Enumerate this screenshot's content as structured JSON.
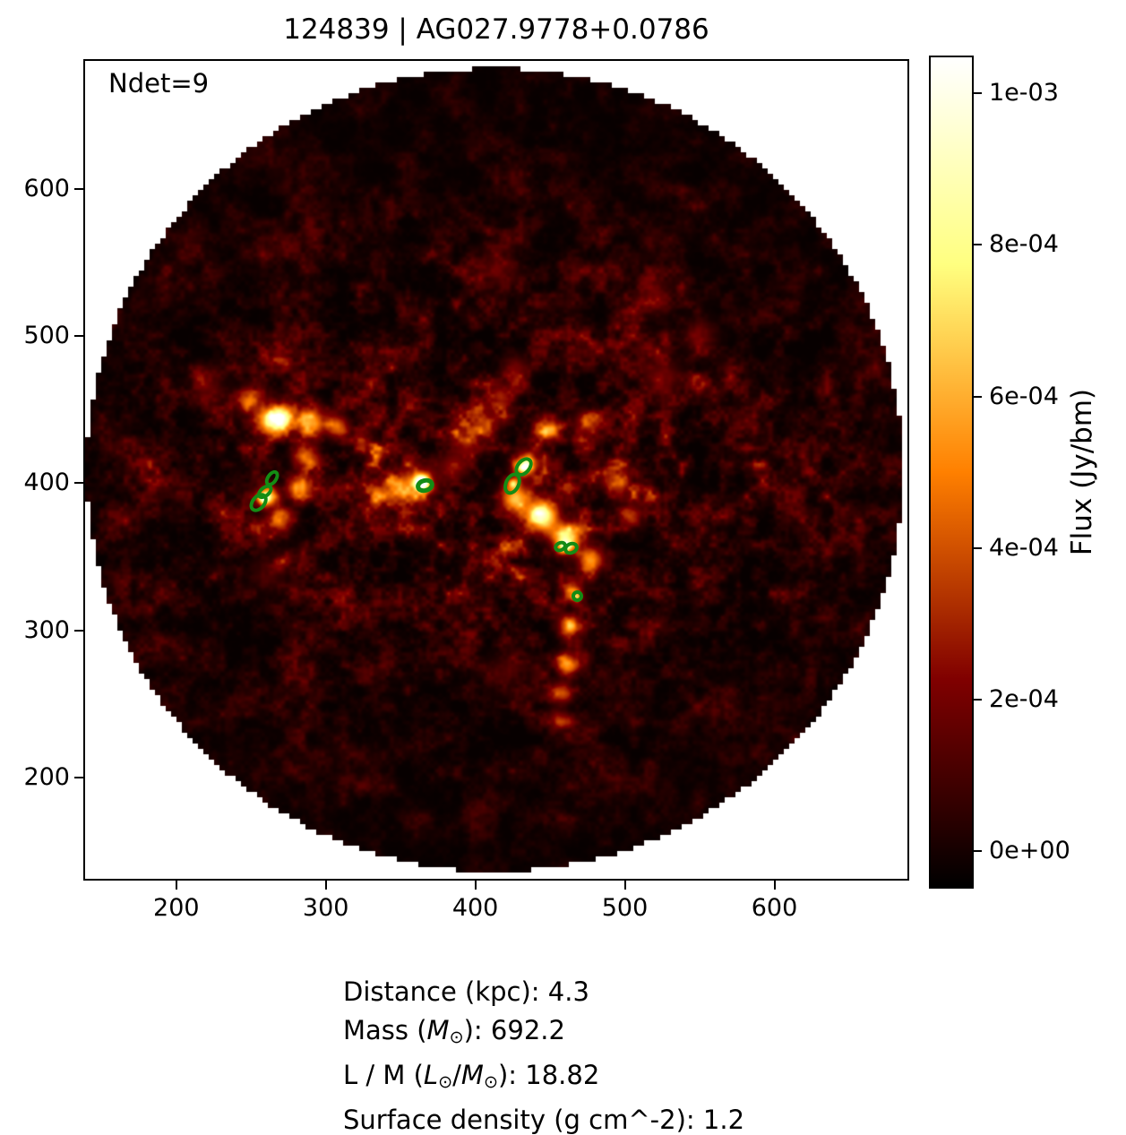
{
  "title": "124839 | AG027.9778+0.0786",
  "ndet_label": "Ndet=9",
  "colors": {
    "detection_ellipse": "#148c14",
    "frame": "#000000",
    "background": "#ffffff"
  },
  "chart_data": {
    "type": "heatmap",
    "title": "124839 | AG027.9778+0.0786",
    "annotation": "Ndet=9",
    "xlabel": "",
    "ylabel": "",
    "xlim": [
      139,
      689
    ],
    "ylim": [
      131,
      687
    ],
    "xticks": [
      200,
      300,
      400,
      500,
      600
    ],
    "yticks": [
      200,
      300,
      400,
      500,
      600
    ],
    "grid": false,
    "colorbar": {
      "label": "Flux (Jy/bm)",
      "colormap": "afmhot",
      "vmin": -5e-05,
      "vmax": 0.00105,
      "ticks": [
        {
          "value": 0.001,
          "label": "1e-03"
        },
        {
          "value": 0.0008,
          "label": "8e-04"
        },
        {
          "value": 0.0006,
          "label": "6e-04"
        },
        {
          "value": 0.0004,
          "label": "4e-04"
        },
        {
          "value": 0.0002,
          "label": "2e-04"
        },
        {
          "value": 0.0,
          "label": "0e+00"
        }
      ]
    },
    "field": {
      "shape": "circle",
      "cx": 413,
      "cy": 409,
      "radius": 273
    },
    "detections": [
      {
        "x": 264,
        "y": 403,
        "a": 4.0,
        "b": 6.2,
        "angle": 35,
        "stroke": 4
      },
      {
        "x": 259,
        "y": 394,
        "a": 4.0,
        "b": 6.2,
        "angle": 50,
        "stroke": 4
      },
      {
        "x": 255,
        "y": 387,
        "a": 5.2,
        "b": 7.4,
        "angle": 40,
        "stroke": 4
      },
      {
        "x": 366,
        "y": 398,
        "a": 6.2,
        "b": 5.0,
        "angle": -15,
        "stroke": 5
      },
      {
        "x": 432,
        "y": 411,
        "a": 5.0,
        "b": 7.4,
        "angle": 40,
        "stroke": 4
      },
      {
        "x": 425,
        "y": 400,
        "a": 5.4,
        "b": 7.8,
        "angle": 25,
        "stroke": 4
      },
      {
        "x": 457,
        "y": 357,
        "a": 4.6,
        "b": 3.6,
        "angle": -25,
        "stroke": 4
      },
      {
        "x": 464,
        "y": 356,
        "a": 5.2,
        "b": 4.2,
        "angle": -25,
        "stroke": 4
      },
      {
        "x": 468,
        "y": 323,
        "a": 3.9,
        "b": 3.9,
        "angle": 0,
        "stroke": 4
      }
    ],
    "bright_features": [
      {
        "x": 262,
        "y": 442,
        "sigma": 6.0,
        "amp": 0.00055
      },
      {
        "x": 271,
        "y": 445,
        "sigma": 6.0,
        "amp": 0.0006
      },
      {
        "x": 289,
        "y": 442,
        "sigma": 6.0,
        "amp": 0.00055
      },
      {
        "x": 307,
        "y": 439,
        "sigma": 5.5,
        "amp": 0.00045
      },
      {
        "x": 286,
        "y": 418,
        "sigma": 5.5,
        "amp": 0.00045
      },
      {
        "x": 283,
        "y": 397,
        "sigma": 5.5,
        "amp": 0.0005
      },
      {
        "x": 261,
        "y": 391,
        "sigma": 5.0,
        "amp": 0.0007
      },
      {
        "x": 258,
        "y": 390,
        "sigma": 2.5,
        "amp": 0.0005
      },
      {
        "x": 270,
        "y": 375,
        "sigma": 5.5,
        "amp": 0.00035
      },
      {
        "x": 249,
        "y": 455,
        "sigma": 7.0,
        "amp": 0.00025
      },
      {
        "x": 334,
        "y": 392,
        "sigma": 6.0,
        "amp": 0.00025
      },
      {
        "x": 349,
        "y": 395,
        "sigma": 5.5,
        "amp": 0.00035
      },
      {
        "x": 364,
        "y": 401,
        "sigma": 3.6,
        "amp": 0.00105
      },
      {
        "x": 362,
        "y": 400,
        "sigma": 9.0,
        "amp": 0.00035
      },
      {
        "x": 385,
        "y": 412,
        "sigma": 7.0,
        "amp": 0.00025
      },
      {
        "x": 406,
        "y": 442,
        "sigma": 7.0,
        "amp": 0.0003
      },
      {
        "x": 418,
        "y": 460,
        "sigma": 6.0,
        "amp": 0.00025
      },
      {
        "x": 427,
        "y": 478,
        "sigma": 6.0,
        "amp": 0.00022
      },
      {
        "x": 394,
        "y": 427,
        "sigma": 6.0,
        "amp": 0.00025
      },
      {
        "x": 427,
        "y": 390,
        "sigma": 7.0,
        "amp": 0.00065
      },
      {
        "x": 445,
        "y": 378,
        "sigma": 7.0,
        "amp": 0.0009
      },
      {
        "x": 460,
        "y": 363,
        "sigma": 6.5,
        "amp": 0.00075
      },
      {
        "x": 460,
        "y": 357,
        "sigma": 3.0,
        "amp": 0.0005
      },
      {
        "x": 477,
        "y": 348,
        "sigma": 6.0,
        "amp": 0.00055
      },
      {
        "x": 433,
        "y": 412,
        "sigma": 6.0,
        "amp": 0.0005
      },
      {
        "x": 432,
        "y": 411,
        "sigma": 2.5,
        "amp": 0.0005
      },
      {
        "x": 425,
        "y": 400,
        "sigma": 2.5,
        "amp": 0.00055
      },
      {
        "x": 447,
        "y": 436,
        "sigma": 6.0,
        "amp": 0.00035
      },
      {
        "x": 474,
        "y": 442,
        "sigma": 5.5,
        "amp": 0.0003
      },
      {
        "x": 495,
        "y": 400,
        "sigma": 6.0,
        "amp": 0.00035
      },
      {
        "x": 503,
        "y": 378,
        "sigma": 5.5,
        "amp": 0.0003
      },
      {
        "x": 465,
        "y": 327,
        "sigma": 5.0,
        "amp": 0.00035
      },
      {
        "x": 468,
        "y": 323,
        "sigma": 2.0,
        "amp": 0.0004
      },
      {
        "x": 462,
        "y": 303,
        "sigma": 5.0,
        "amp": 0.00045
      },
      {
        "x": 461,
        "y": 278,
        "sigma": 5.0,
        "amp": 0.0005
      },
      {
        "x": 458,
        "y": 257,
        "sigma": 4.5,
        "amp": 0.00035
      },
      {
        "x": 456,
        "y": 239,
        "sigma": 4.5,
        "amp": 0.00025
      },
      {
        "x": 525,
        "y": 472,
        "sigma": 9.0,
        "amp": 0.0002
      },
      {
        "x": 550,
        "y": 500,
        "sigma": 8.0,
        "amp": 0.00016
      },
      {
        "x": 519,
        "y": 527,
        "sigma": 8.0,
        "amp": 0.00015
      },
      {
        "x": 221,
        "y": 466,
        "sigma": 8.0,
        "amp": 0.00015
      },
      {
        "x": 415,
        "y": 545,
        "sigma": 8.0,
        "amp": 0.00015
      },
      {
        "x": 262,
        "y": 339,
        "sigma": 9.0,
        "amp": 0.00012
      },
      {
        "x": 418,
        "y": 272,
        "sigma": 8.0,
        "amp": 0.00012
      }
    ],
    "noise": {
      "seed": 124839
    }
  },
  "footer": {
    "lines": [
      {
        "segments": [
          {
            "t": "Distance (kpc): 4.3"
          }
        ]
      },
      {
        "segments": [
          {
            "t": "Mass ("
          },
          {
            "t": "M",
            "style": "it"
          },
          {
            "t": "⊙",
            "style": "sub"
          },
          {
            "t": "): 692.2"
          }
        ]
      },
      {
        "segments": [
          {
            "t": "L / M ("
          },
          {
            "t": "L",
            "style": "it"
          },
          {
            "t": "⊙",
            "style": "sub"
          },
          {
            "t": "/"
          },
          {
            "t": "M",
            "style": "it"
          },
          {
            "t": "⊙",
            "style": "sub"
          },
          {
            "t": "): 18.82"
          }
        ]
      },
      {
        "segments": [
          {
            "t": "Surface density (g cm^-2): 1.2"
          }
        ]
      }
    ]
  }
}
